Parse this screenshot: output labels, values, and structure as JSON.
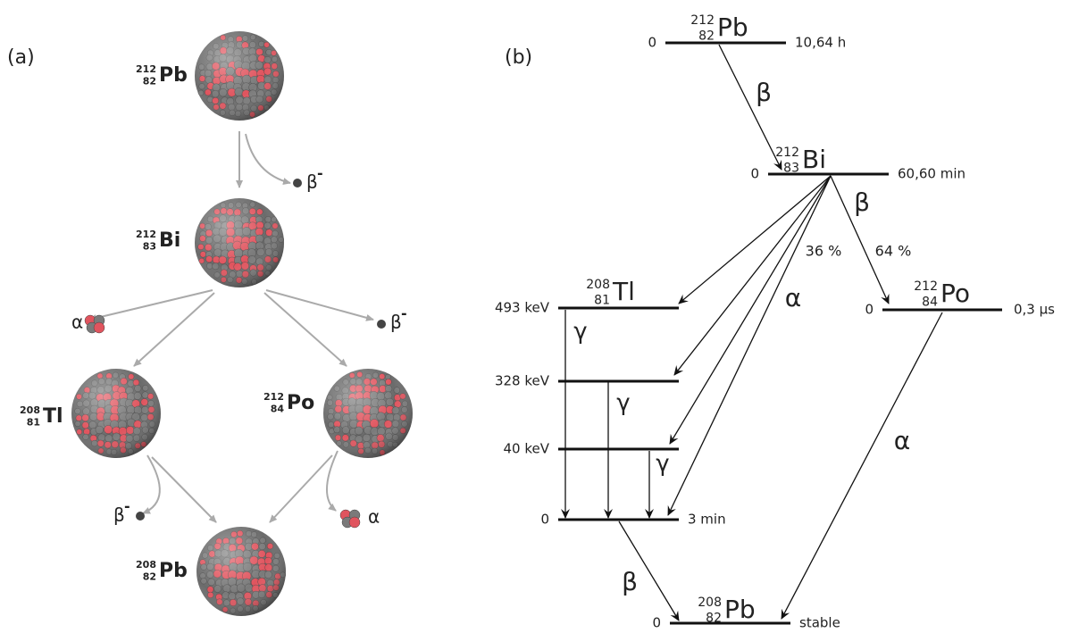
{
  "panel_a": {
    "label": "(a)",
    "nuclei": [
      {
        "mass": 212,
        "charge": 82,
        "symbol": "Pb"
      },
      {
        "mass": 212,
        "charge": 83,
        "symbol": "Bi"
      },
      {
        "mass": 208,
        "charge": 81,
        "symbol": "Tl"
      },
      {
        "mass": 212,
        "charge": 84,
        "symbol": "Po"
      },
      {
        "mass": 208,
        "charge": 82,
        "symbol": "Pb"
      }
    ],
    "emissions": [
      {
        "particle": "β",
        "charge": "-"
      },
      {
        "particle": "α"
      },
      {
        "particle": "β",
        "charge": "-"
      },
      {
        "particle": "β",
        "charge": "-"
      },
      {
        "particle": "α"
      }
    ]
  },
  "panel_b": {
    "label": "(b)",
    "nuclides": [
      {
        "mass": 212,
        "charge": 82,
        "symbol": "Pb"
      },
      {
        "mass": 212,
        "charge": 83,
        "symbol": "Bi"
      },
      {
        "mass": 208,
        "charge": 81,
        "symbol": "Tl"
      },
      {
        "mass": 212,
        "charge": 84,
        "symbol": "Po"
      },
      {
        "mass": 208,
        "charge": 82,
        "symbol": "Pb"
      }
    ],
    "levels": [
      {
        "energy": 0,
        "half_life": "10,64 h"
      },
      {
        "energy": 0,
        "half_life": "60,60 min"
      },
      {
        "energy": "493 keV"
      },
      {
        "energy": "328 keV"
      },
      {
        "energy": "40 keV"
      },
      {
        "energy": 0,
        "half_life": "3 min"
      },
      {
        "energy": 0,
        "half_life": "0,3 µs"
      },
      {
        "energy": 0,
        "half_life": "stable"
      }
    ],
    "transitions": [
      {
        "label": "β"
      },
      {
        "label": "β"
      },
      {
        "label": "64 %"
      },
      {
        "label": "36 %"
      },
      {
        "label": "α"
      },
      {
        "label": "γ"
      },
      {
        "label": "γ"
      },
      {
        "label": "γ"
      },
      {
        "label": "β"
      },
      {
        "label": "α"
      }
    ]
  }
}
